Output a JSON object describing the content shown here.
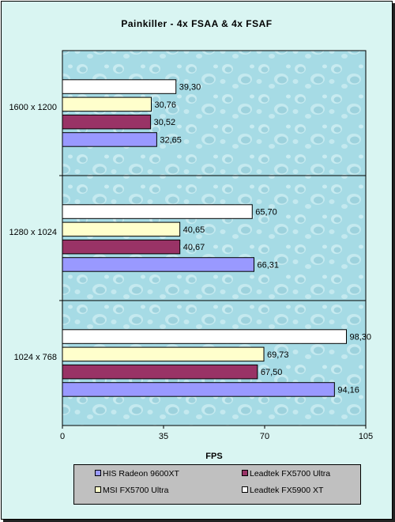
{
  "chart_data": {
    "type": "bar",
    "orientation": "horizontal",
    "title": "Painkiller - 4x FSAA & 4x FSAF",
    "xlabel": "FPS",
    "ylabel": "",
    "xlim": [
      0,
      105
    ],
    "x_ticks": [
      "0",
      "35",
      "70",
      "105"
    ],
    "grid": false,
    "legend_position": "bottom",
    "categories": [
      "1600 x 1200",
      "1280 x 1024",
      "1024 x 768"
    ],
    "series": [
      {
        "name": "HIS Radeon 9600XT",
        "color": "#9999ff",
        "values": [
          32.65,
          66.31,
          94.16
        ],
        "labels": [
          "32,65",
          "66,31",
          "94,16"
        ]
      },
      {
        "name": "Leadtek FX5700 Ultra",
        "color": "#993366",
        "values": [
          30.52,
          40.67,
          67.5
        ],
        "labels": [
          "30,52",
          "40,67",
          "67,50"
        ]
      },
      {
        "name": "MSI FX5700 Ultra",
        "color": "#ffffcc",
        "values": [
          30.76,
          40.65,
          69.73
        ],
        "labels": [
          "30,76",
          "40,65",
          "69,73"
        ]
      },
      {
        "name": "Leadtek FX5900 XT",
        "color": "#ffffff",
        "values": [
          39.3,
          65.7,
          98.3
        ],
        "labels": [
          "39,30",
          "65,70",
          "98,30"
        ]
      }
    ],
    "plot_background": "#a8dde6"
  }
}
